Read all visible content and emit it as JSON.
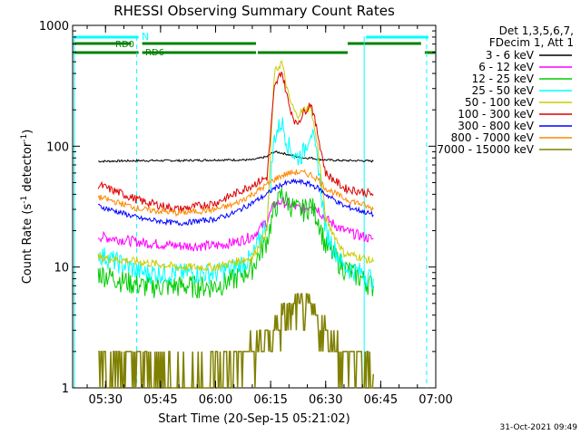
{
  "chart_data": {
    "type": "line",
    "title": "RHESSI Observing Summary Count Rates",
    "xlabel": "Start Time (20-Sep-15 05:21:02)",
    "ylabel": "Count Rate (s",
    "ylabel_sup": "-1",
    "ylabel_tail": " detector",
    "ylabel_tail_sup": "-1",
    "ylabel_close": ")",
    "y_scale": "log",
    "ylim": [
      1,
      1000
    ],
    "y_ticks": [
      1,
      10,
      100,
      1000
    ],
    "y_tick_labels": [
      "1",
      "10",
      "100",
      "1000"
    ],
    "xlim": [
      "05:21:02",
      "07:00"
    ],
    "x_ticks": [
      "05:30",
      "05:45",
      "06:00",
      "06:15",
      "06:30",
      "06:45",
      "07:00"
    ],
    "legend_header": [
      "Det 1,3,5,6,7,",
      "FDecim 1, Att 1"
    ],
    "legend_position": "outside-right",
    "flag_labels": [
      "N",
      "RD0",
      "RD6"
    ],
    "flags": [
      {
        "name": "N",
        "color": "#00ffff",
        "segments": [
          [
            "05:21:02",
            "05:39:00"
          ],
          [
            "06:41:00",
            "06:58:00"
          ]
        ]
      },
      {
        "name": "RD0",
        "color": "#008000",
        "segments": [
          [
            "05:21:02",
            "05:37:00"
          ],
          [
            "05:40:00",
            "06:11:00"
          ],
          [
            "06:36:00",
            "06:56:00"
          ]
        ]
      },
      {
        "name": "RD6",
        "color": "#008000",
        "segments": [
          [
            "05:21:02",
            "05:39:00"
          ],
          [
            "05:40:00",
            "06:11:00"
          ],
          [
            "06:11:30",
            "06:36:00"
          ],
          [
            "06:57:00",
            "07:00"
          ]
        ]
      }
    ],
    "vertical_lines": [
      {
        "time": "05:21:30",
        "color": "#00ffff",
        "style": "solid"
      },
      {
        "time": "05:38:30",
        "color": "#00ffff",
        "style": "dashed"
      },
      {
        "time": "06:40:30",
        "color": "#00ffff",
        "style": "solid"
      },
      {
        "time": "06:57:30",
        "color": "#00ffff",
        "style": "dashed"
      }
    ],
    "x": [
      "05:28",
      "05:40",
      "05:50",
      "06:00",
      "06:05",
      "06:10",
      "06:14",
      "06:16",
      "06:18",
      "06:20",
      "06:22",
      "06:24",
      "06:26",
      "06:28",
      "06:30",
      "06:35",
      "06:40",
      "06:43"
    ],
    "series": [
      {
        "name": "3 - 6 keV",
        "color": "#000000",
        "values": [
          75,
          76,
          76,
          77,
          77,
          77,
          82,
          90,
          88,
          85,
          82,
          80,
          80,
          78,
          77,
          76,
          76,
          75
        ]
      },
      {
        "name": "6 - 12 keV",
        "color": "#ff00ff",
        "values": [
          18,
          16,
          15,
          15,
          16,
          18,
          24,
          33,
          35,
          33,
          31,
          30,
          33,
          30,
          25,
          20,
          18,
          17
        ]
      },
      {
        "name": "12 - 25 keV",
        "color": "#00cc00",
        "values": [
          9,
          7,
          7,
          7,
          8,
          10,
          17,
          30,
          40,
          34,
          30,
          30,
          33,
          25,
          15,
          10,
          8,
          7
        ]
      },
      {
        "name": "25 - 50 keV",
        "color": "#00ffff",
        "values": [
          13,
          9,
          9,
          9,
          10,
          12,
          24,
          120,
          160,
          100,
          80,
          90,
          140,
          70,
          20,
          10,
          9,
          8
        ]
      },
      {
        "name": "50 - 100 keV",
        "color": "#cccc00",
        "values": [
          12,
          11,
          10,
          10,
          11,
          12,
          20,
          400,
          500,
          250,
          180,
          200,
          210,
          90,
          25,
          13,
          12,
          11
        ]
      },
      {
        "name": "100 - 300 keV",
        "color": "#dd0000",
        "values": [
          48,
          35,
          30,
          34,
          40,
          48,
          55,
          300,
          420,
          220,
          150,
          190,
          230,
          120,
          60,
          45,
          42,
          40
        ]
      },
      {
        "name": "300 - 800 keV",
        "color": "#0000ff",
        "values": [
          32,
          25,
          23,
          25,
          28,
          34,
          40,
          45,
          48,
          50,
          51,
          50,
          48,
          45,
          40,
          32,
          29,
          27
        ]
      },
      {
        "name": "800 - 7000 keV",
        "color": "#ff8800",
        "values": [
          38,
          30,
          28,
          30,
          33,
          40,
          48,
          53,
          57,
          60,
          61,
          60,
          58,
          53,
          45,
          37,
          33,
          30
        ]
      },
      {
        "name": "7000 - 15000 keV",
        "color": "#808000",
        "values": [
          2,
          1.5,
          1.2,
          1.3,
          1.6,
          2,
          2.5,
          3,
          3.5,
          4,
          4.5,
          4.5,
          4,
          3.5,
          2.8,
          2,
          1.5,
          1.3
        ]
      }
    ]
  },
  "footer": {
    "timestamp": "31-Oct-2021 09:49"
  }
}
